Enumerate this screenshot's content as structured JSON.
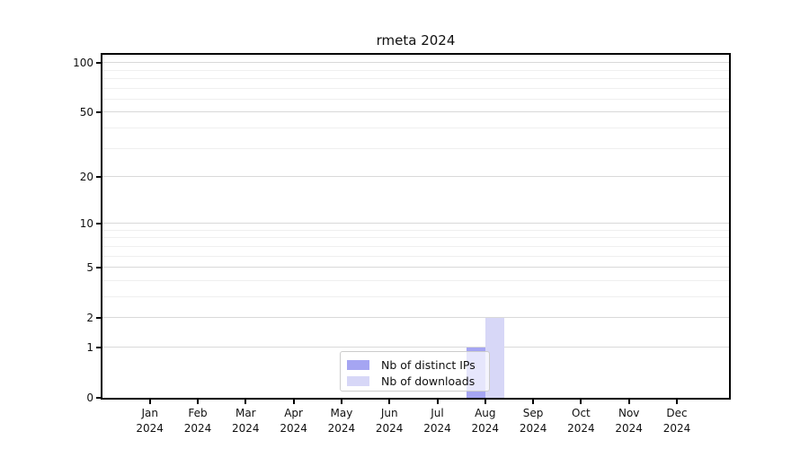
{
  "title": "rmeta 2024",
  "chart_data": {
    "type": "bar",
    "title": "rmeta 2024",
    "categories": [
      "Jan",
      "Feb",
      "Mar",
      "Apr",
      "May",
      "Jun",
      "Jul",
      "Aug",
      "Sep",
      "Oct",
      "Nov",
      "Dec"
    ],
    "year_label": "2024",
    "series": [
      {
        "name": "Nb of distinct IPs",
        "color": "#a5a5f2",
        "values": [
          0,
          0,
          0,
          0,
          0,
          0,
          0,
          1,
          0,
          0,
          0,
          0
        ]
      },
      {
        "name": "Nb of downloads",
        "color": "#d7d7f7",
        "values": [
          0,
          0,
          0,
          0,
          0,
          0,
          0,
          2,
          0,
          0,
          0,
          0
        ]
      }
    ],
    "y_scale": "log1p",
    "y_axis": {
      "major_ticks": [
        0,
        1,
        2,
        5,
        10,
        20,
        50,
        100
      ],
      "minor_gridlines": [
        3,
        4,
        6,
        7,
        8,
        9,
        30,
        40,
        60,
        70,
        80,
        90
      ],
      "max": 112
    },
    "xlabel": "",
    "ylabel": "",
    "grid": true,
    "legend_position": "lower center"
  },
  "legend": {
    "entries": [
      "Nb of distinct IPs",
      "Nb of downloads"
    ]
  },
  "colors": {
    "background": "#ffffff",
    "spine": "#000000",
    "grid_major": "#d9d9d9",
    "grid_minor": "#efefef",
    "legend_border": "#cccccc",
    "bar_ips": "#a5a5f2",
    "bar_downloads": "#d7d7f7"
  }
}
